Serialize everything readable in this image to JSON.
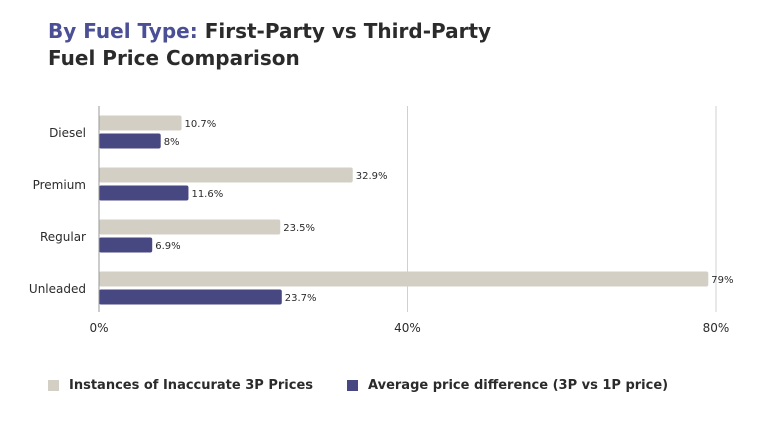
{
  "header": {
    "title_accent": "By Fuel Type:",
    "title_rest": "First-Party vs Third-Party",
    "title_line2": "Fuel Price Comparison"
  },
  "colors": {
    "accent": "#4a4f96",
    "series_inaccurate": "#d3cfc4",
    "series_difference": "#474782",
    "text": "#2b2b2b",
    "grid": "#d0d0d0"
  },
  "chart_data": {
    "type": "bar",
    "orientation": "horizontal",
    "categories": [
      "Diesel",
      "Premium",
      "Regular",
      "Unleaded"
    ],
    "series": [
      {
        "name": "Instances of Inaccurate 3P Prices",
        "values": [
          10.7,
          32.9,
          23.5,
          79
        ],
        "labels": [
          "10.7%",
          "32.9%",
          "23.5%",
          "79%"
        ]
      },
      {
        "name": "Average price difference (3P vs 1P price)",
        "values": [
          8,
          11.6,
          6.9,
          23.7
        ],
        "labels": [
          "8%",
          "11.6%",
          "6.9%",
          "23.7%"
        ]
      }
    ],
    "xlim": [
      0,
      80
    ],
    "xticks": [
      0,
      40,
      80
    ],
    "xtick_labels": [
      "0%",
      "40%",
      "80%"
    ],
    "grid": true,
    "legend_position": "bottom"
  }
}
